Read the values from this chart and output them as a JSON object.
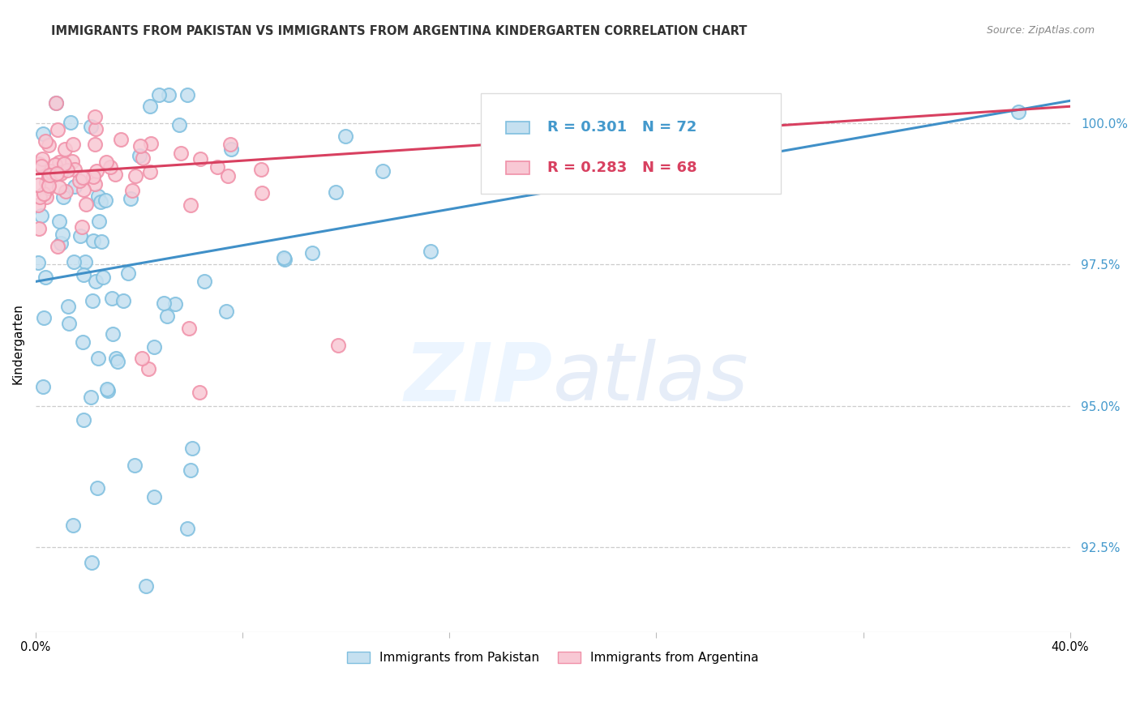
{
  "title": "IMMIGRANTS FROM PAKISTAN VS IMMIGRANTS FROM ARGENTINA KINDERGARTEN CORRELATION CHART",
  "source": "Source: ZipAtlas.com",
  "ylabel": "Kindergarten",
  "yticks": [
    92.5,
    95.0,
    97.5,
    100.0
  ],
  "ytick_labels": [
    "92.5%",
    "95.0%",
    "97.5%",
    "100.0%"
  ],
  "xlim": [
    0.0,
    0.4
  ],
  "ylim": [
    91.0,
    101.2
  ],
  "pakistan_color": "#7fbfdf",
  "pakistan_color_fill": "#c5e0f0",
  "argentina_color": "#f090a8",
  "argentina_color_fill": "#f8c8d4",
  "pakistan_line_color": "#4090c8",
  "argentina_line_color": "#d84060",
  "R_pakistan": 0.301,
  "N_pakistan": 72,
  "R_argentina": 0.283,
  "N_argentina": 68,
  "legend_label_pakistan": "Immigrants from Pakistan",
  "legend_label_argentina": "Immigrants from Argentina",
  "pak_line_x": [
    0.0,
    0.4
  ],
  "pak_line_y": [
    97.2,
    100.4
  ],
  "arg_line_x": [
    0.0,
    0.4
  ],
  "arg_line_y": [
    99.1,
    100.3
  ]
}
